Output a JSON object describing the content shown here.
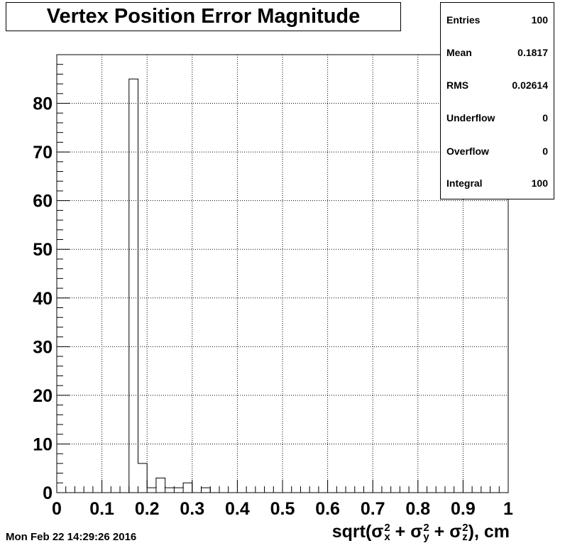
{
  "chart_data": {
    "type": "bar",
    "title": "Vertex Position Error Magnitude",
    "xlabel_parts": {
      "prefix": "sqrt(",
      "sigma": "σ",
      "terms": [
        {
          "sub": "x",
          "sup": "2",
          "after": " + "
        },
        {
          "sub": "y",
          "sup": "2",
          "after": " + "
        },
        {
          "sub": "z",
          "sup": "2",
          "after": "), cm"
        }
      ]
    },
    "xlim": [
      0,
      1
    ],
    "ylim": [
      0,
      90
    ],
    "x_ticks": [
      "0",
      "0.1",
      "0.2",
      "0.3",
      "0.4",
      "0.5",
      "0.6",
      "0.7",
      "0.8",
      "0.9",
      "1"
    ],
    "y_ticks": [
      "0",
      "10",
      "20",
      "30",
      "40",
      "50",
      "60",
      "70",
      "80"
    ],
    "grid": true,
    "bin_width": 0.02,
    "bins": [
      {
        "x0": 0.16,
        "value": 85
      },
      {
        "x0": 0.18,
        "value": 6
      },
      {
        "x0": 0.2,
        "value": 1
      },
      {
        "x0": 0.22,
        "value": 3
      },
      {
        "x0": 0.24,
        "value": 1
      },
      {
        "x0": 0.26,
        "value": 1
      },
      {
        "x0": 0.28,
        "value": 2
      },
      {
        "x0": 0.32,
        "value": 1
      }
    ],
    "stats": [
      {
        "label": "Entries",
        "value": "100"
      },
      {
        "label": "Mean",
        "value": "0.1817"
      },
      {
        "label": "RMS",
        "value": "0.02614"
      },
      {
        "label": "Underflow",
        "value": "0"
      },
      {
        "label": "Overflow",
        "value": "0"
      },
      {
        "label": "Integral",
        "value": "100"
      }
    ]
  },
  "datestamp": "Mon Feb 22 14:29:26 2016"
}
